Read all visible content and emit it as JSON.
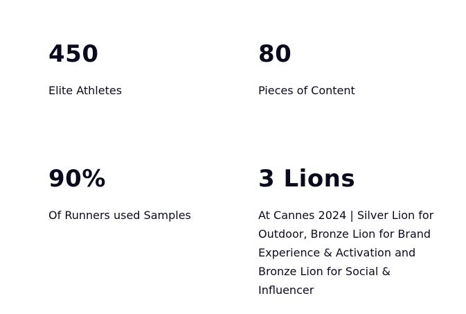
{
  "stats": [
    {
      "value": "450",
      "label": "Elite Athletes"
    },
    {
      "value": "80",
      "label": "Pieces of Content"
    },
    {
      "value": "90%",
      "label": "Of Runners used Samples"
    },
    {
      "value": "3 Lions",
      "label": "At Cannes 2024 | Silver Lion for Outdoor, Bronze Lion for Brand Experience & Activation and Bronze Lion for Social & Influencer"
    }
  ]
}
